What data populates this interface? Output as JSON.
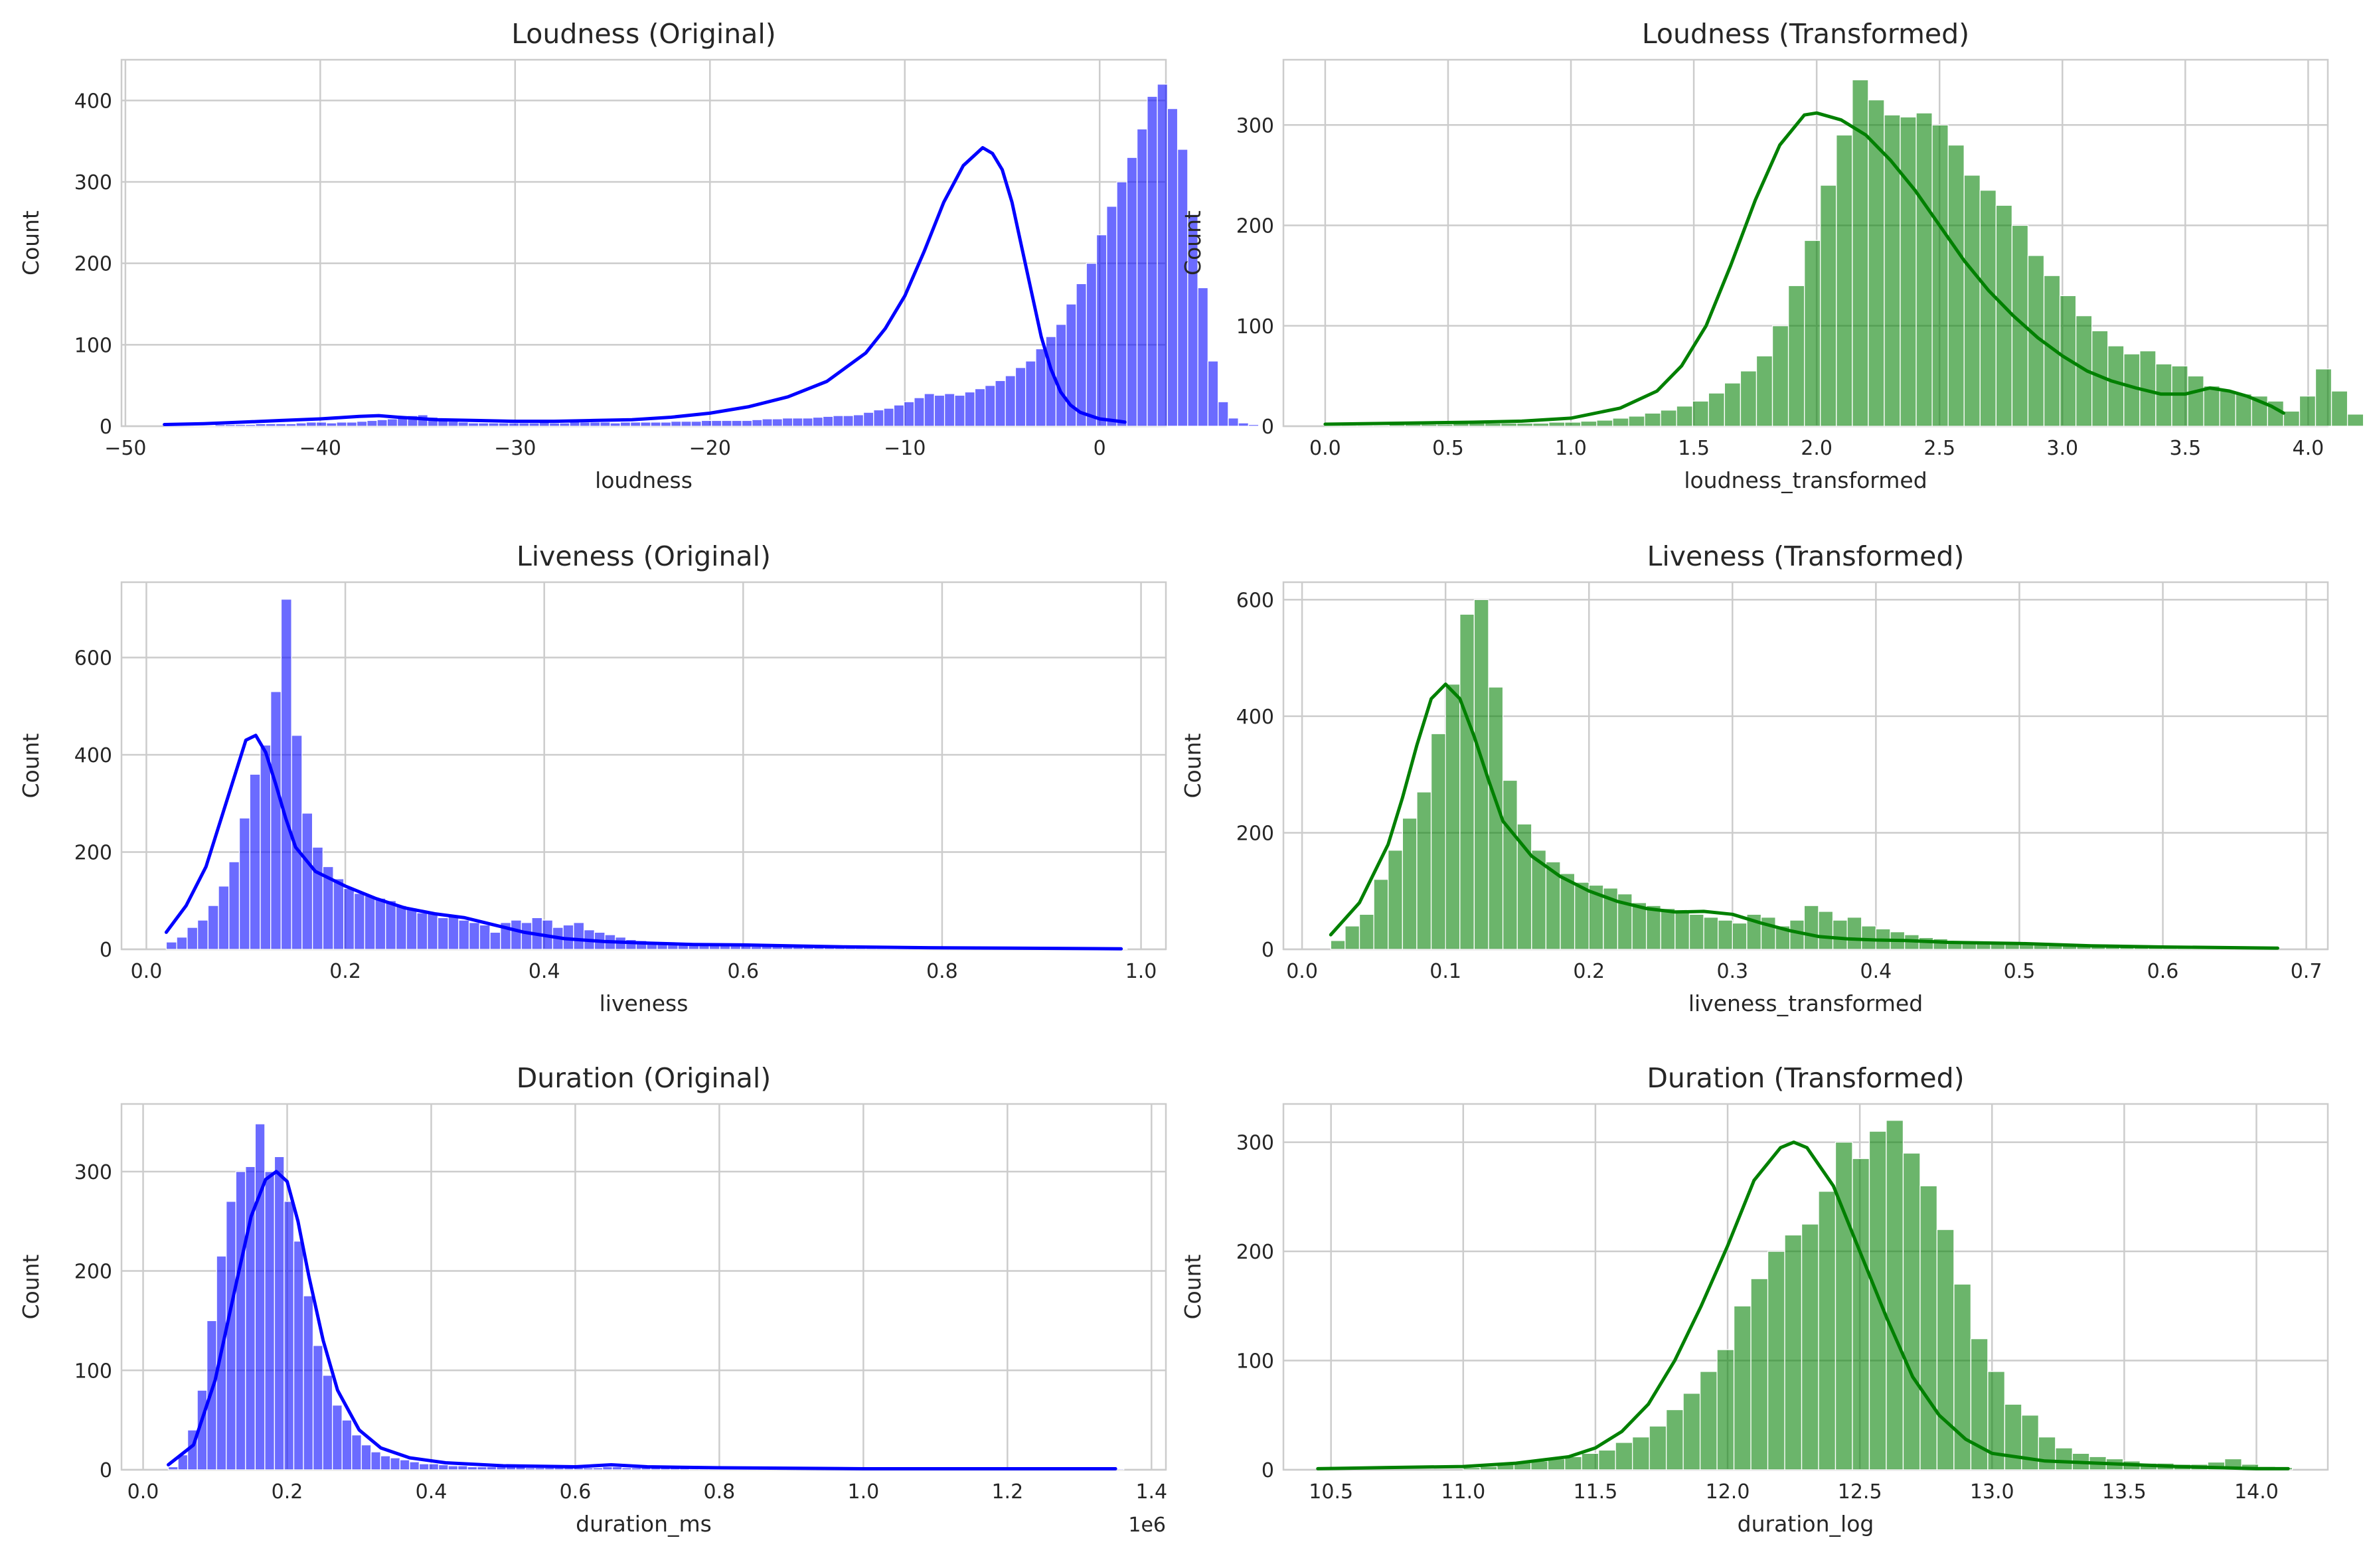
{
  "figure": {
    "background": "#ffffff",
    "grid_color": "#cccccc"
  },
  "chart_data": [
    {
      "type": "bar",
      "panel": "top-left",
      "title": "Loudness (Original)",
      "xlabel": "loudness",
      "ylabel": "Count",
      "color": "#0000ff",
      "xlim": [
        -50.2,
        3.4
      ],
      "ylim": [
        0,
        450
      ],
      "xticks": [
        -50,
        -40,
        -30,
        -20,
        -10,
        0
      ],
      "xtick_labels": [
        "−50",
        "−40",
        "−30",
        "−20",
        "−10",
        "0"
      ],
      "yticks": [
        0,
        100,
        200,
        300,
        400
      ],
      "ytick_labels": [
        "0",
        "100",
        "200",
        "300",
        "400"
      ],
      "grid": true,
      "x_start": -48.0,
      "bin_width": 0.52,
      "values": [
        1,
        1,
        1,
        1,
        1,
        2,
        2,
        2,
        2,
        3,
        3,
        3,
        3,
        4,
        5,
        5,
        4,
        5,
        5,
        6,
        7,
        8,
        9,
        11,
        13,
        14,
        11,
        9,
        6,
        5,
        4,
        4,
        4,
        4,
        4,
        4,
        4,
        5,
        4,
        4,
        6,
        5,
        5,
        5,
        4,
        5,
        5,
        5,
        5,
        5,
        6,
        6,
        6,
        7,
        7,
        7,
        7,
        7,
        8,
        9,
        9,
        10,
        10,
        10,
        11,
        12,
        13,
        13,
        14,
        17,
        20,
        22,
        26,
        30,
        35,
        40,
        38,
        40,
        38,
        42,
        46,
        50,
        56,
        62,
        72,
        80,
        95,
        110,
        125,
        150,
        175,
        200,
        235,
        270,
        300,
        330,
        365,
        405,
        420,
        390,
        340,
        260,
        170,
        80,
        30,
        10,
        4,
        2
      ],
      "kde": [
        [
          -48,
          2
        ],
        [
          -46,
          3
        ],
        [
          -44,
          5
        ],
        [
          -42,
          7
        ],
        [
          -40,
          9
        ],
        [
          -38,
          12
        ],
        [
          -37,
          13
        ],
        [
          -36,
          11
        ],
        [
          -34,
          8
        ],
        [
          -32,
          7
        ],
        [
          -30,
          6
        ],
        [
          -28,
          6
        ],
        [
          -26,
          7
        ],
        [
          -24,
          8
        ],
        [
          -22,
          11
        ],
        [
          -20,
          16
        ],
        [
          -18,
          24
        ],
        [
          -16,
          36
        ],
        [
          -14,
          55
        ],
        [
          -12,
          90
        ],
        [
          -11,
          120
        ],
        [
          -10,
          160
        ],
        [
          -9,
          215
        ],
        [
          -8,
          275
        ],
        [
          -7,
          320
        ],
        [
          -6,
          342
        ],
        [
          -5.5,
          335
        ],
        [
          -5,
          315
        ],
        [
          -4.5,
          275
        ],
        [
          -4,
          220
        ],
        [
          -3.5,
          165
        ],
        [
          -3,
          110
        ],
        [
          -2.5,
          70
        ],
        [
          -2,
          42
        ],
        [
          -1.5,
          26
        ],
        [
          -1,
          17
        ],
        [
          0,
          9
        ],
        [
          1,
          6
        ],
        [
          1.3,
          5
        ]
      ]
    },
    {
      "type": "bar",
      "panel": "top-right",
      "title": "Loudness (Transformed)",
      "xlabel": "loudness_transformed",
      "ylabel": "Count",
      "color": "#008000",
      "xlim": [
        -0.17,
        4.08
      ],
      "ylim": [
        0,
        365
      ],
      "xticks": [
        0,
        0.5,
        1.0,
        1.5,
        2.0,
        2.5,
        3.0,
        3.5,
        4.0
      ],
      "xtick_labels": [
        "0.0",
        "0.5",
        "1.0",
        "1.5",
        "2.0",
        "2.5",
        "3.0",
        "3.5",
        "4.0"
      ],
      "yticks": [
        0,
        100,
        200,
        300
      ],
      "ytick_labels": [
        "0",
        "100",
        "200",
        "300"
      ],
      "grid": true,
      "x_start": 0.0,
      "bin_width": 0.065,
      "values": [
        1,
        1,
        1,
        1,
        2,
        2,
        2,
        2,
        3,
        3,
        3,
        3,
        3,
        3,
        4,
        4,
        5,
        6,
        8,
        10,
        13,
        16,
        20,
        25,
        33,
        43,
        55,
        70,
        100,
        140,
        185,
        240,
        290,
        345,
        325,
        310,
        308,
        312,
        300,
        280,
        250,
        235,
        220,
        200,
        170,
        150,
        130,
        110,
        95,
        80,
        72,
        75,
        62,
        60,
        50,
        40,
        35,
        32,
        30,
        25,
        15,
        30,
        57,
        35,
        12
      ],
      "kde": [
        [
          0,
          2
        ],
        [
          0.3,
          3
        ],
        [
          0.6,
          4
        ],
        [
          0.8,
          5
        ],
        [
          1.0,
          8
        ],
        [
          1.2,
          18
        ],
        [
          1.35,
          35
        ],
        [
          1.45,
          60
        ],
        [
          1.55,
          100
        ],
        [
          1.65,
          160
        ],
        [
          1.75,
          225
        ],
        [
          1.85,
          280
        ],
        [
          1.95,
          310
        ],
        [
          2.0,
          312
        ],
        [
          2.1,
          305
        ],
        [
          2.2,
          290
        ],
        [
          2.3,
          265
        ],
        [
          2.4,
          235
        ],
        [
          2.5,
          200
        ],
        [
          2.6,
          165
        ],
        [
          2.7,
          135
        ],
        [
          2.8,
          110
        ],
        [
          2.9,
          88
        ],
        [
          3.0,
          70
        ],
        [
          3.1,
          55
        ],
        [
          3.2,
          45
        ],
        [
          3.3,
          38
        ],
        [
          3.4,
          32
        ],
        [
          3.5,
          32
        ],
        [
          3.6,
          38
        ],
        [
          3.68,
          35
        ],
        [
          3.75,
          30
        ],
        [
          3.85,
          20
        ],
        [
          3.9,
          13
        ]
      ]
    },
    {
      "type": "bar",
      "panel": "middle-left",
      "title": "Liveness (Original)",
      "xlabel": "liveness",
      "ylabel": "Count",
      "color": "#0000ff",
      "xlim": [
        -0.025,
        1.025
      ],
      "ylim": [
        0,
        755
      ],
      "xticks": [
        0,
        0.2,
        0.4,
        0.6,
        0.8,
        1.0
      ],
      "xtick_labels": [
        "0.0",
        "0.2",
        "0.4",
        "0.6",
        "0.8",
        "1.0"
      ],
      "yticks": [
        0,
        200,
        400,
        600
      ],
      "ytick_labels": [
        "0",
        "200",
        "400",
        "600"
      ],
      "grid": true,
      "x_start": 0.02,
      "bin_width": 0.0105,
      "values": [
        15,
        25,
        45,
        60,
        90,
        130,
        180,
        270,
        360,
        420,
        530,
        720,
        440,
        280,
        210,
        170,
        145,
        125,
        115,
        110,
        105,
        100,
        90,
        85,
        75,
        75,
        65,
        70,
        60,
        55,
        50,
        35,
        55,
        60,
        55,
        65,
        60,
        45,
        50,
        55,
        40,
        35,
        30,
        25,
        20,
        18,
        15,
        12,
        10,
        10,
        9,
        8,
        8,
        8,
        7,
        7,
        6,
        6,
        6,
        6,
        5,
        5,
        5,
        5,
        4,
        4,
        4,
        4,
        4,
        4,
        3,
        3,
        3,
        3,
        3,
        3,
        3,
        3,
        2,
        2,
        2,
        2,
        2,
        2,
        2,
        2,
        2,
        2,
        2,
        2,
        1,
        1
      ],
      "kde": [
        [
          0.02,
          35
        ],
        [
          0.04,
          90
        ],
        [
          0.06,
          170
        ],
        [
          0.08,
          300
        ],
        [
          0.1,
          430
        ],
        [
          0.11,
          440
        ],
        [
          0.12,
          405
        ],
        [
          0.13,
          340
        ],
        [
          0.14,
          270
        ],
        [
          0.15,
          210
        ],
        [
          0.17,
          160
        ],
        [
          0.2,
          130
        ],
        [
          0.23,
          105
        ],
        [
          0.26,
          85
        ],
        [
          0.29,
          73
        ],
        [
          0.32,
          65
        ],
        [
          0.35,
          50
        ],
        [
          0.38,
          35
        ],
        [
          0.42,
          22
        ],
        [
          0.46,
          16
        ],
        [
          0.5,
          13
        ],
        [
          0.55,
          10
        ],
        [
          0.6,
          9
        ],
        [
          0.65,
          7
        ],
        [
          0.7,
          5
        ],
        [
          0.8,
          3
        ],
        [
          0.9,
          2
        ],
        [
          0.98,
          1
        ]
      ]
    },
    {
      "type": "bar",
      "panel": "middle-right",
      "title": "Liveness (Transformed)",
      "xlabel": "liveness_transformed",
      "ylabel": "Count",
      "color": "#008000",
      "xlim": [
        -0.013,
        0.715
      ],
      "ylim": [
        0,
        630
      ],
      "xticks": [
        0,
        0.1,
        0.2,
        0.3,
        0.4,
        0.5,
        0.6,
        0.7
      ],
      "xtick_labels": [
        "0.0",
        "0.1",
        "0.2",
        "0.3",
        "0.4",
        "0.5",
        "0.6",
        "0.7"
      ],
      "yticks": [
        0,
        200,
        400,
        600
      ],
      "ytick_labels": [
        "0",
        "200",
        "400",
        "600"
      ],
      "grid": true,
      "x_start": 0.02,
      "bin_width": 0.01,
      "values": [
        15,
        40,
        60,
        120,
        170,
        225,
        270,
        370,
        455,
        575,
        600,
        450,
        290,
        215,
        170,
        150,
        130,
        115,
        110,
        105,
        95,
        80,
        75,
        70,
        65,
        60,
        55,
        50,
        45,
        60,
        55,
        40,
        50,
        75,
        65,
        50,
        55,
        40,
        35,
        30,
        25,
        20,
        18,
        15,
        12,
        12,
        12,
        10,
        10,
        9,
        8,
        8,
        8,
        7,
        7,
        6,
        6,
        5,
        5,
        5,
        4,
        4,
        4,
        3,
        3,
        3
      ],
      "kde": [
        [
          0.02,
          25
        ],
        [
          0.04,
          80
        ],
        [
          0.06,
          180
        ],
        [
          0.07,
          260
        ],
        [
          0.08,
          350
        ],
        [
          0.09,
          430
        ],
        [
          0.1,
          455
        ],
        [
          0.11,
          430
        ],
        [
          0.12,
          365
        ],
        [
          0.13,
          290
        ],
        [
          0.14,
          220
        ],
        [
          0.16,
          160
        ],
        [
          0.18,
          125
        ],
        [
          0.2,
          100
        ],
        [
          0.22,
          82
        ],
        [
          0.24,
          70
        ],
        [
          0.26,
          64
        ],
        [
          0.28,
          65
        ],
        [
          0.3,
          60
        ],
        [
          0.32,
          45
        ],
        [
          0.34,
          32
        ],
        [
          0.36,
          22
        ],
        [
          0.38,
          18
        ],
        [
          0.4,
          16
        ],
        [
          0.42,
          15
        ],
        [
          0.45,
          12
        ],
        [
          0.5,
          10
        ],
        [
          0.55,
          6
        ],
        [
          0.6,
          4
        ],
        [
          0.68,
          2
        ]
      ]
    },
    {
      "type": "bar",
      "panel": "bottom-left",
      "title": "Duration (Original)",
      "xlabel": "duration_ms",
      "ylabel": "Count",
      "color": "#0000ff",
      "xlim": [
        -30000,
        1420000
      ],
      "ylim": [
        0,
        368
      ],
      "xticks": [
        0,
        200000,
        400000,
        600000,
        800000,
        1000000,
        1200000,
        1400000
      ],
      "xtick_labels": [
        "0.0",
        "0.2",
        "0.4",
        "0.6",
        "0.8",
        "1.0",
        "1.2",
        "1.4"
      ],
      "x_offset_label": "1e6",
      "yticks": [
        0,
        100,
        200,
        300
      ],
      "ytick_labels": [
        "0",
        "100",
        "200",
        "300"
      ],
      "grid": true,
      "x_start": 35000,
      "bin_width": 13400,
      "values": [
        3,
        15,
        40,
        80,
        150,
        215,
        270,
        300,
        305,
        348,
        300,
        315,
        270,
        230,
        175,
        125,
        95,
        65,
        50,
        35,
        25,
        18,
        14,
        12,
        10,
        8,
        6,
        6,
        5,
        4,
        4,
        3,
        3,
        3,
        3,
        3,
        3,
        2,
        2,
        2,
        2,
        2,
        2,
        2,
        2,
        3,
        3,
        2,
        2,
        2,
        2,
        2,
        2,
        2,
        1,
        1,
        1,
        1,
        1,
        1,
        1,
        1,
        1,
        1,
        1,
        1,
        1,
        1,
        1,
        1,
        1,
        1,
        1,
        1,
        1,
        1,
        1,
        1,
        1,
        1,
        1,
        1,
        1,
        1,
        1,
        1,
        1,
        1,
        1,
        1,
        1,
        1,
        1,
        1,
        1,
        1,
        1,
        1,
        1
      ],
      "kde": [
        [
          35000,
          5
        ],
        [
          70000,
          25
        ],
        [
          100000,
          90
        ],
        [
          130000,
          190
        ],
        [
          150000,
          255
        ],
        [
          170000,
          292
        ],
        [
          185000,
          300
        ],
        [
          200000,
          290
        ],
        [
          215000,
          250
        ],
        [
          230000,
          195
        ],
        [
          250000,
          130
        ],
        [
          270000,
          80
        ],
        [
          300000,
          40
        ],
        [
          330000,
          22
        ],
        [
          370000,
          12
        ],
        [
          420000,
          7
        ],
        [
          500000,
          4
        ],
        [
          600000,
          3
        ],
        [
          650000,
          5
        ],
        [
          700000,
          3
        ],
        [
          800000,
          2
        ],
        [
          1000000,
          1
        ],
        [
          1200000,
          1
        ],
        [
          1350000,
          1
        ]
      ]
    },
    {
      "type": "bar",
      "panel": "bottom-right",
      "title": "Duration (Transformed)",
      "xlabel": "duration_log",
      "ylabel": "Count",
      "color": "#008000",
      "xlim": [
        10.32,
        14.27
      ],
      "ylim": [
        0,
        335
      ],
      "xticks": [
        10.5,
        11.0,
        11.5,
        12.0,
        12.5,
        13.0,
        13.5,
        14.0
      ],
      "xtick_labels": [
        "10.5",
        "11.0",
        "11.5",
        "12.0",
        "12.5",
        "13.0",
        "13.5",
        "14.0"
      ],
      "yticks": [
        0,
        100,
        200,
        300
      ],
      "ytick_labels": [
        "0",
        "100",
        "200",
        "300"
      ],
      "grid": true,
      "x_start": 11.0,
      "bin_width": 0.064,
      "values": [
        2,
        3,
        5,
        7,
        8,
        10,
        12,
        15,
        18,
        25,
        30,
        40,
        55,
        70,
        90,
        110,
        150,
        175,
        200,
        215,
        225,
        255,
        300,
        285,
        310,
        320,
        290,
        260,
        220,
        170,
        120,
        90,
        60,
        50,
        30,
        20,
        15,
        12,
        10,
        8,
        6,
        6,
        5,
        5,
        7,
        10,
        5,
        3,
        2
      ],
      "kde": [
        [
          10.45,
          1
        ],
        [
          10.7,
          2
        ],
        [
          11.0,
          3
        ],
        [
          11.2,
          6
        ],
        [
          11.4,
          12
        ],
        [
          11.5,
          20
        ],
        [
          11.6,
          35
        ],
        [
          11.7,
          60
        ],
        [
          11.8,
          100
        ],
        [
          11.9,
          150
        ],
        [
          12.0,
          205
        ],
        [
          12.1,
          265
        ],
        [
          12.2,
          295
        ],
        [
          12.25,
          300
        ],
        [
          12.3,
          295
        ],
        [
          12.4,
          260
        ],
        [
          12.5,
          200
        ],
        [
          12.6,
          140
        ],
        [
          12.7,
          85
        ],
        [
          12.8,
          50
        ],
        [
          12.9,
          28
        ],
        [
          13.0,
          15
        ],
        [
          13.2,
          8
        ],
        [
          13.4,
          6
        ],
        [
          13.5,
          5
        ],
        [
          13.7,
          3
        ],
        [
          14.0,
          1
        ],
        [
          14.12,
          1
        ]
      ]
    }
  ]
}
